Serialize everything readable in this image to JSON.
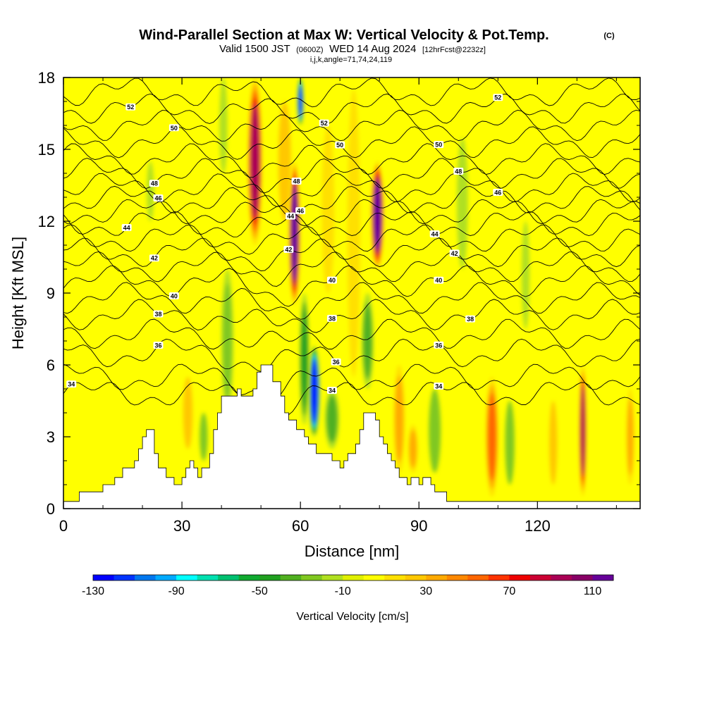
{
  "title": {
    "main": "Wind-Parallel Section at Max W: Vertical Velocity & Pot.Temp.",
    "copyright": "(C)",
    "valid_prefix": "Valid 1500 JST",
    "valid_utc": "(0600Z)",
    "valid_date": "WED 14 Aug 2024",
    "forecast": "[12hrFcst@2232z]",
    "ijk": "i,j,k,angle=71,74,24,119"
  },
  "chart_data": {
    "type": "heatmap",
    "xlabel": "Distance [nm]",
    "ylabel": "Height [Kft MSL]",
    "xlim": [
      0,
      146
    ],
    "ylim": [
      0,
      18
    ],
    "x_ticks": [
      "0",
      "30",
      "60",
      "90",
      "120"
    ],
    "x_tick_values": [
      0,
      30,
      60,
      90,
      120
    ],
    "y_ticks": [
      "0",
      "3",
      "6",
      "9",
      "12",
      "15",
      "18"
    ],
    "y_tick_values": [
      0,
      3,
      6,
      9,
      12,
      15,
      18
    ],
    "background_color": "#ffff00",
    "terrain_profile": [
      [
        0,
        0.3
      ],
      [
        4,
        0.3
      ],
      [
        4,
        0.7
      ],
      [
        10,
        0.7
      ],
      [
        10,
        1.0
      ],
      [
        13,
        1.0
      ],
      [
        13,
        1.3
      ],
      [
        15,
        1.3
      ],
      [
        15,
        1.7
      ],
      [
        18,
        1.7
      ],
      [
        18,
        2.0
      ],
      [
        19,
        2.0
      ],
      [
        19,
        2.5
      ],
      [
        20,
        2.5
      ],
      [
        20,
        3.0
      ],
      [
        21,
        3.0
      ],
      [
        21,
        3.3
      ],
      [
        23,
        3.3
      ],
      [
        23,
        2.3
      ],
      [
        24,
        2.3
      ],
      [
        24,
        1.7
      ],
      [
        26,
        1.7
      ],
      [
        26,
        1.3
      ],
      [
        28,
        1.3
      ],
      [
        28,
        1.0
      ],
      [
        30,
        1.0
      ],
      [
        30,
        1.3
      ],
      [
        31,
        1.3
      ],
      [
        31,
        1.7
      ],
      [
        32,
        1.7
      ],
      [
        32,
        2.0
      ],
      [
        33,
        2.0
      ],
      [
        33,
        1.7
      ],
      [
        34,
        1.7
      ],
      [
        34,
        1.3
      ],
      [
        35,
        1.3
      ],
      [
        35,
        1.7
      ],
      [
        37,
        1.7
      ],
      [
        37,
        2.3
      ],
      [
        38,
        2.3
      ],
      [
        38,
        3.3
      ],
      [
        39,
        3.3
      ],
      [
        39,
        4.0
      ],
      [
        40,
        4.0
      ],
      [
        40,
        4.7
      ],
      [
        44,
        4.7
      ],
      [
        44,
        5.0
      ],
      [
        45,
        5.0
      ],
      [
        45,
        4.7
      ],
      [
        48,
        4.7
      ],
      [
        48,
        5.0
      ],
      [
        49,
        5.0
      ],
      [
        49,
        5.7
      ],
      [
        50,
        5.7
      ],
      [
        50,
        6.0
      ],
      [
        53,
        6.0
      ],
      [
        53,
        5.3
      ],
      [
        55,
        5.3
      ],
      [
        55,
        4.7
      ],
      [
        56,
        4.7
      ],
      [
        56,
        4.0
      ],
      [
        57,
        4.0
      ],
      [
        57,
        3.7
      ],
      [
        59,
        3.7
      ],
      [
        59,
        3.3
      ],
      [
        61,
        3.3
      ],
      [
        61,
        3.0
      ],
      [
        62,
        3.0
      ],
      [
        62,
        2.7
      ],
      [
        64,
        2.7
      ],
      [
        64,
        2.3
      ],
      [
        68,
        2.3
      ],
      [
        68,
        2.0
      ],
      [
        70,
        2.0
      ],
      [
        70,
        1.7
      ],
      [
        71,
        1.7
      ],
      [
        71,
        2.0
      ],
      [
        72,
        2.0
      ],
      [
        72,
        2.3
      ],
      [
        74,
        2.3
      ],
      [
        74,
        2.7
      ],
      [
        75,
        2.7
      ],
      [
        75,
        3.3
      ],
      [
        76,
        3.3
      ],
      [
        76,
        4.0
      ],
      [
        79,
        4.0
      ],
      [
        79,
        3.7
      ],
      [
        80,
        3.7
      ],
      [
        80,
        3.0
      ],
      [
        81,
        3.0
      ],
      [
        81,
        2.7
      ],
      [
        82,
        2.7
      ],
      [
        82,
        2.3
      ],
      [
        83,
        2.3
      ],
      [
        83,
        2.0
      ],
      [
        84,
        2.0
      ],
      [
        84,
        1.7
      ],
      [
        85,
        1.7
      ],
      [
        85,
        1.3
      ],
      [
        87,
        1.3
      ],
      [
        87,
        1.0
      ],
      [
        88,
        1.0
      ],
      [
        88,
        1.3
      ],
      [
        90,
        1.3
      ],
      [
        90,
        1.0
      ],
      [
        91,
        1.0
      ],
      [
        91,
        1.3
      ],
      [
        93,
        1.3
      ],
      [
        93,
        1.0
      ],
      [
        94,
        1.0
      ],
      [
        94,
        0.7
      ],
      [
        97,
        0.7
      ],
      [
        97,
        0.3
      ],
      [
        146,
        0.3
      ]
    ],
    "velocity_features": [
      {
        "x": 48.5,
        "y0": 11.0,
        "y1": 18.0,
        "w": 1.8,
        "value": 95
      },
      {
        "x": 58.5,
        "y0": 8.5,
        "y1": 14.5,
        "w": 1.4,
        "value": 110
      },
      {
        "x": 63.5,
        "y0": 3.0,
        "y1": 6.8,
        "w": 1.4,
        "value": -130
      },
      {
        "x": 79.5,
        "y0": 10.0,
        "y1": 14.5,
        "w": 1.6,
        "value": 110
      },
      {
        "x": 131.5,
        "y0": 0.5,
        "y1": 6.0,
        "w": 0.9,
        "value": 90
      },
      {
        "x": 108.5,
        "y0": 0.5,
        "y1": 5.5,
        "w": 1.6,
        "value": 50
      },
      {
        "x": 60.0,
        "y0": 16.0,
        "y1": 18.0,
        "w": 0.8,
        "value": -120
      },
      {
        "x": 56.0,
        "y0": 12.0,
        "y1": 17.0,
        "w": 1.6,
        "value": 20
      },
      {
        "x": 41.5,
        "y0": 4.0,
        "y1": 10.0,
        "w": 1.5,
        "value": -30
      },
      {
        "x": 61.0,
        "y0": 3.5,
        "y1": 9.0,
        "w": 1.2,
        "value": -50
      },
      {
        "x": 68.0,
        "y0": 2.5,
        "y1": 5.0,
        "w": 1.8,
        "value": -35
      },
      {
        "x": 77.0,
        "y0": 5.0,
        "y1": 9.0,
        "w": 1.5,
        "value": -40
      },
      {
        "x": 94.0,
        "y0": 1.5,
        "y1": 5.0,
        "w": 1.5,
        "value": -25
      },
      {
        "x": 113.0,
        "y0": 1.0,
        "y1": 4.5,
        "w": 1.2,
        "value": -25
      },
      {
        "x": 117.0,
        "y0": 7.5,
        "y1": 12.0,
        "w": 1.0,
        "value": -15
      },
      {
        "x": 101.0,
        "y0": 10.0,
        "y1": 15.5,
        "w": 1.4,
        "value": -15
      },
      {
        "x": 85.0,
        "y0": 1.5,
        "y1": 6.0,
        "w": 1.4,
        "value": 30
      },
      {
        "x": 88.5,
        "y0": 1.5,
        "y1": 3.5,
        "w": 1.2,
        "value": 30
      },
      {
        "x": 73.5,
        "y0": 5.5,
        "y1": 17.5,
        "w": 1.6,
        "value": 15
      },
      {
        "x": 67.0,
        "y0": 9.0,
        "y1": 16.0,
        "w": 1.6,
        "value": 15
      },
      {
        "x": 143.5,
        "y0": 1.0,
        "y1": 5.0,
        "w": 1.0,
        "value": 35
      },
      {
        "x": 124.0,
        "y0": 1.0,
        "y1": 4.5,
        "w": 1.0,
        "value": 20
      },
      {
        "x": 35.5,
        "y0": 2.0,
        "y1": 4.0,
        "w": 1.0,
        "value": -25
      },
      {
        "x": 31.5,
        "y0": 2.5,
        "y1": 5.5,
        "w": 1.2,
        "value": 20
      },
      {
        "x": 22.0,
        "y0": 12.0,
        "y1": 14.5,
        "w": 0.9,
        "value": -15
      },
      {
        "x": 40.5,
        "y0": 14.0,
        "y1": 18.0,
        "w": 1.0,
        "value": -15
      }
    ],
    "theta_contours": [
      {
        "level": 34,
        "base": 4.8,
        "amp": 0.4,
        "labels": [
          {
            "text": "34",
            "x": 2
          },
          {
            "text": "34",
            "x": 68
          },
          {
            "text": "34",
            "x": 95
          }
        ]
      },
      {
        "level": 35,
        "base": 5.5,
        "amp": 0.4,
        "labels": []
      },
      {
        "level": 36,
        "base": 6.5,
        "amp": 0.4,
        "labels": [
          {
            "text": "36",
            "x": 24
          },
          {
            "text": "36",
            "x": 69
          },
          {
            "text": "36",
            "x": 95
          }
        ]
      },
      {
        "level": 37,
        "base": 7.3,
        "amp": 0.4,
        "labels": []
      },
      {
        "level": 38,
        "base": 8.1,
        "amp": 0.4,
        "labels": [
          {
            "text": "38",
            "x": 24
          },
          {
            "text": "38",
            "x": 68
          },
          {
            "text": "38",
            "x": 103
          }
        ]
      },
      {
        "level": 39,
        "base": 8.8,
        "amp": 0.4,
        "labels": []
      },
      {
        "level": 40,
        "base": 9.5,
        "amp": 0.4,
        "labels": [
          {
            "text": "40",
            "x": 28
          },
          {
            "text": "40",
            "x": 68
          },
          {
            "text": "40",
            "x": 95
          }
        ]
      },
      {
        "level": 41,
        "base": 10.1,
        "amp": 0.4,
        "labels": []
      },
      {
        "level": 42,
        "base": 10.7,
        "amp": 0.4,
        "labels": [
          {
            "text": "42",
            "x": 23
          },
          {
            "text": "42",
            "x": 57
          },
          {
            "text": "42",
            "x": 99
          }
        ]
      },
      {
        "level": 43,
        "base": 11.3,
        "amp": 0.4,
        "labels": []
      },
      {
        "level": 44,
        "base": 11.9,
        "amp": 0.4,
        "labels": [
          {
            "text": "44",
            "x": 16
          },
          {
            "text": "44",
            "x": 57.5
          },
          {
            "text": "44",
            "x": 94
          }
        ]
      },
      {
        "level": 45,
        "base": 12.4,
        "amp": 0.4,
        "labels": []
      },
      {
        "level": 46,
        "base": 12.9,
        "amp": 0.4,
        "labels": [
          {
            "text": "46",
            "x": 24
          },
          {
            "text": "46",
            "x": 60
          },
          {
            "text": "46",
            "x": 110
          }
        ]
      },
      {
        "level": 47,
        "base": 13.4,
        "amp": 0.4,
        "labels": []
      },
      {
        "level": 48,
        "base": 14.0,
        "amp": 0.4,
        "labels": [
          {
            "text": "48",
            "x": 23
          },
          {
            "text": "48",
            "x": 59
          },
          {
            "text": "48",
            "x": 100
          }
        ]
      },
      {
        "level": 49,
        "base": 14.6,
        "amp": 0.4,
        "labels": []
      },
      {
        "level": 50,
        "base": 15.3,
        "amp": 0.4,
        "labels": [
          {
            "text": "50",
            "x": 28
          },
          {
            "text": "50",
            "x": 70
          },
          {
            "text": "50",
            "x": 95
          }
        ]
      },
      {
        "level": 51,
        "base": 16.0,
        "amp": 0.4,
        "labels": []
      },
      {
        "level": 52,
        "base": 16.7,
        "amp": 0.4,
        "labels": [
          {
            "text": "52",
            "x": 17
          },
          {
            "text": "52",
            "x": 66
          },
          {
            "text": "52",
            "x": 110
          }
        ]
      },
      {
        "level": 53,
        "base": 17.4,
        "amp": 0.4,
        "labels": []
      }
    ],
    "colorbar": {
      "label": "Vertical Velocity [cm/s]",
      "tick_labels": [
        "-130",
        "-90",
        "-50",
        "-10",
        "30",
        "70",
        "110"
      ],
      "tick_values": [
        -130,
        -90,
        -50,
        -10,
        30,
        70,
        110
      ],
      "bin_edges": [
        -130,
        -120,
        -110,
        -100,
        -90,
        -80,
        -70,
        -60,
        -50,
        -40,
        -30,
        -20,
        -10,
        0,
        10,
        20,
        30,
        40,
        50,
        60,
        70,
        80,
        90,
        100,
        110,
        120
      ],
      "colors": [
        "#0000ff",
        "#0033ff",
        "#0077ee",
        "#00aaff",
        "#00ffff",
        "#00e0b0",
        "#00c070",
        "#10aa30",
        "#20a020",
        "#50b020",
        "#80c820",
        "#b0e020",
        "#e0f000",
        "#ffff00",
        "#ffe000",
        "#ffc800",
        "#ffaa00",
        "#ff8800",
        "#ff6600",
        "#ff3300",
        "#ee0000",
        "#cc0033",
        "#aa0055",
        "#880066",
        "#660099"
      ]
    }
  }
}
